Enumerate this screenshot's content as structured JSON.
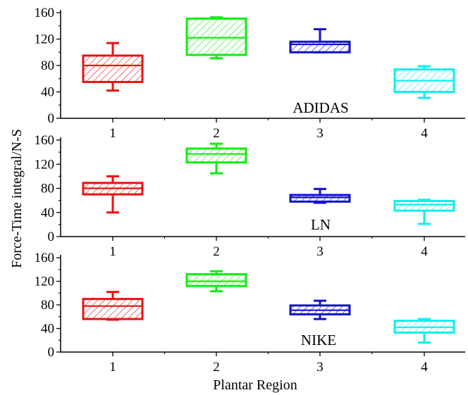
{
  "chart_data": {
    "type": "box",
    "ylabel": "Force-Time integral/N-S",
    "xlabel": "Plantar Region",
    "categories": [
      "1",
      "2",
      "3",
      "4"
    ],
    "series_colors": [
      "#ee1111",
      "#11ee11",
      "#1111cc",
      "#11eeee"
    ],
    "ylim": [
      0,
      160
    ],
    "yticks": [
      0,
      40,
      80,
      120,
      160
    ],
    "panels": [
      {
        "label": "ADIDAS",
        "boxes": [
          {
            "min": 42,
            "q1": 55,
            "median": 80,
            "q3": 95,
            "max": 114
          },
          {
            "min": 91,
            "q1": 96,
            "median": 122,
            "q3": 151,
            "max": 153
          },
          {
            "min": 100,
            "q1": 100,
            "median": 112,
            "q3": 116,
            "max": 135
          },
          {
            "min": 31,
            "q1": 40,
            "median": 57,
            "q3": 74,
            "max": 79
          }
        ]
      },
      {
        "label": "LN",
        "boxes": [
          {
            "min": 40,
            "q1": 70,
            "median": 80,
            "q3": 89,
            "max": 100
          },
          {
            "min": 105,
            "q1": 123,
            "median": 137,
            "q3": 146,
            "max": 154
          },
          {
            "min": 56,
            "q1": 58,
            "median": 65,
            "q3": 69,
            "max": 79
          },
          {
            "min": 21,
            "q1": 43,
            "median": 53,
            "q3": 59,
            "max": 61
          }
        ]
      },
      {
        "label": "NIKE",
        "boxes": [
          {
            "min": 55,
            "q1": 56,
            "median": 78,
            "q3": 90,
            "max": 102
          },
          {
            "min": 103,
            "q1": 112,
            "median": 120,
            "q3": 132,
            "max": 137
          },
          {
            "min": 56,
            "q1": 64,
            "median": 71,
            "q3": 79,
            "max": 87
          },
          {
            "min": 16,
            "q1": 33,
            "median": 42,
            "q3": 53,
            "max": 56
          }
        ]
      }
    ]
  }
}
